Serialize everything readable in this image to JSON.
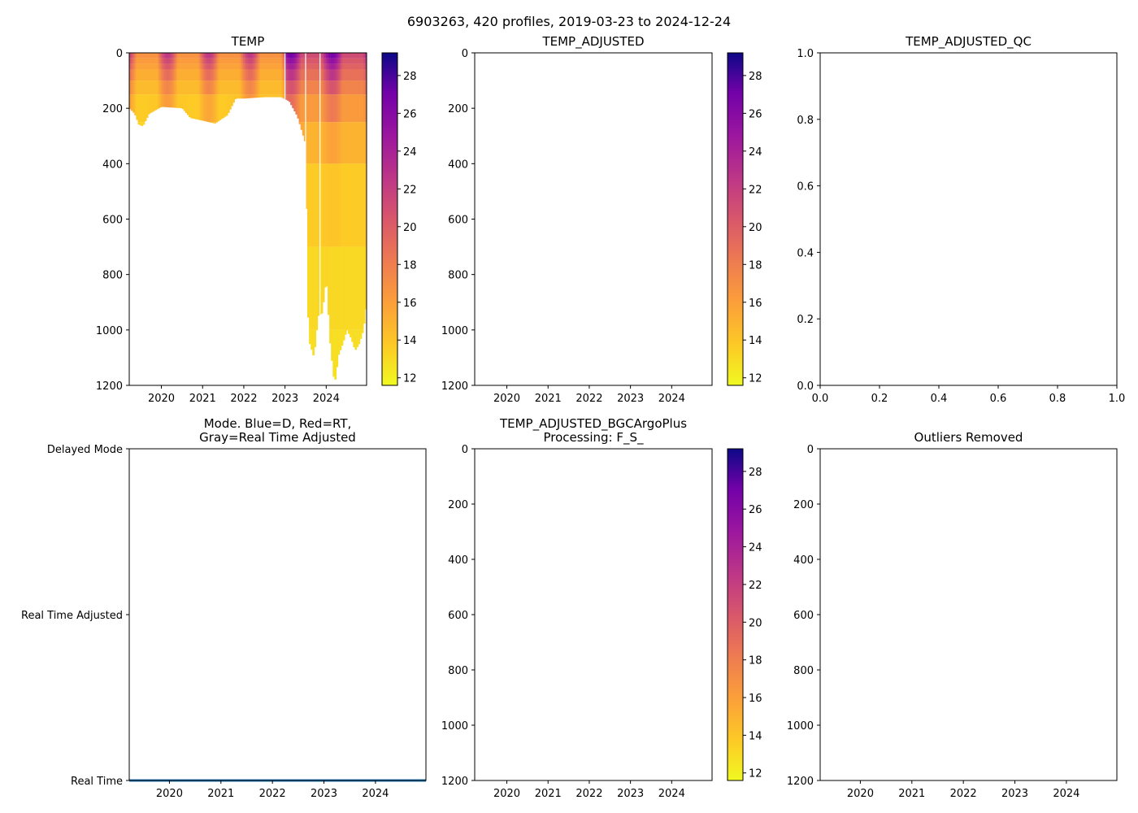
{
  "figure": {
    "suptitle": "6903263, 420 profiles, 2019-03-23 to 2024-12-24"
  },
  "colors": {
    "mode_line": "#1f77b4",
    "background": "#ffffff"
  },
  "chart_data": [
    {
      "id": "temp",
      "type": "heatmap",
      "title": "TEMP",
      "xlabel": "",
      "ylabel": "",
      "xticks": [
        "2020",
        "2021",
        "2022",
        "2023",
        "2024"
      ],
      "xtick_years": [
        2020,
        2021,
        2022,
        2023,
        2024
      ],
      "xlim": [
        2019.22,
        2024.98
      ],
      "yticks": [
        "0",
        "200",
        "400",
        "600",
        "800",
        "1000",
        "1200"
      ],
      "ytick_values": [
        0,
        200,
        400,
        600,
        800,
        1000,
        1200
      ],
      "ylim": [
        1200,
        0
      ],
      "colormap": "plasma_r",
      "colorbar": {
        "range": [
          11.6,
          29.2
        ],
        "ticks": [
          "12",
          "14",
          "16",
          "18",
          "20",
          "22",
          "24",
          "26",
          "28"
        ],
        "tick_values": [
          12,
          14,
          16,
          18,
          20,
          22,
          24,
          26,
          28
        ]
      },
      "profile_max_depth": {
        "time": [
          2019.22,
          2019.35,
          2019.45,
          2019.55,
          2019.7,
          2020.0,
          2020.5,
          2020.7,
          2021.0,
          2021.3,
          2021.6,
          2021.8,
          2022.0,
          2022.5,
          2022.9,
          2023.1,
          2023.3,
          2023.5,
          2023.55,
          2023.6,
          2023.7,
          2023.8,
          2023.9,
          2024.0,
          2024.1,
          2024.2,
          2024.3,
          2024.4,
          2024.5,
          2024.6,
          2024.7,
          2024.8,
          2024.9,
          2024.98
        ],
        "depth": [
          200,
          220,
          260,
          265,
          220,
          195,
          200,
          235,
          245,
          255,
          225,
          165,
          165,
          160,
          160,
          175,
          230,
          330,
          930,
          1050,
          1100,
          950,
          940,
          810,
          1060,
          1200,
          1090,
          1050,
          1000,
          1030,
          1075,
          1050,
          1000,
          900
        ]
      },
      "temperature_summary": {
        "surface_range": [
          20,
          29
        ],
        "deep_value": 12,
        "warm_surface_years": [
          "2019",
          "2020",
          "2021",
          "2022",
          "2023",
          "2024"
        ]
      }
    },
    {
      "id": "temp_adjusted",
      "type": "heatmap",
      "title": "TEMP_ADJUSTED",
      "xticks": [
        "2020",
        "2021",
        "2022",
        "2023",
        "2024"
      ],
      "xtick_years": [
        2020,
        2021,
        2022,
        2023,
        2024
      ],
      "xlim": [
        2019.22,
        2024.98
      ],
      "yticks": [
        "0",
        "200",
        "400",
        "600",
        "800",
        "1000",
        "1200"
      ],
      "ytick_values": [
        0,
        200,
        400,
        600,
        800,
        1000,
        1200
      ],
      "ylim": [
        1200,
        0
      ],
      "colormap": "plasma_r",
      "colorbar": {
        "range": [
          11.6,
          29.2
        ],
        "ticks": [
          "12",
          "14",
          "16",
          "18",
          "20",
          "22",
          "24",
          "26",
          "28"
        ],
        "tick_values": [
          12,
          14,
          16,
          18,
          20,
          22,
          24,
          26,
          28
        ]
      },
      "values": []
    },
    {
      "id": "temp_adjusted_qc",
      "type": "scatter",
      "title": "TEMP_ADJUSTED_QC",
      "xticks": [
        "0.0",
        "0.2",
        "0.4",
        "0.6",
        "0.8",
        "1.0"
      ],
      "xtick_values": [
        0,
        0.2,
        0.4,
        0.6,
        0.8,
        1.0
      ],
      "xlim": [
        0,
        1
      ],
      "yticks": [
        "0.0",
        "0.2",
        "0.4",
        "0.6",
        "0.8",
        "1.0"
      ],
      "ytick_values": [
        0,
        0.2,
        0.4,
        0.6,
        0.8,
        1.0
      ],
      "ylim": [
        0,
        1
      ],
      "values": []
    },
    {
      "id": "mode",
      "type": "line",
      "title": "Mode. Blue=D, Red=RT,",
      "title_line2": "Gray=Real Time Adjusted",
      "xticks": [
        "2020",
        "2021",
        "2022",
        "2023",
        "2024"
      ],
      "xtick_years": [
        2020,
        2021,
        2022,
        2023,
        2024
      ],
      "xlim": [
        2019.22,
        2024.98
      ],
      "yticks": [
        "Delayed Mode",
        "Real Time Adjusted",
        "Real Time"
      ],
      "ytick_values": [
        2,
        1,
        0
      ],
      "ylim": [
        0,
        2
      ],
      "series": [
        {
          "name": "mode",
          "x": [
            2019.22,
            2024.98
          ],
          "y": [
            0,
            0
          ]
        }
      ]
    },
    {
      "id": "bgc_plus",
      "type": "heatmap",
      "title": "TEMP_ADJUSTED_BGCArgoPlus",
      "title_line2": "Processing: F_S_",
      "xticks": [
        "2020",
        "2021",
        "2022",
        "2023",
        "2024"
      ],
      "xtick_years": [
        2020,
        2021,
        2022,
        2023,
        2024
      ],
      "xlim": [
        2019.22,
        2024.98
      ],
      "yticks": [
        "0",
        "200",
        "400",
        "600",
        "800",
        "1000",
        "1200"
      ],
      "ytick_values": [
        0,
        200,
        400,
        600,
        800,
        1000,
        1200
      ],
      "ylim": [
        1200,
        0
      ],
      "colormap": "plasma_r",
      "colorbar": {
        "range": [
          11.6,
          29.2
        ],
        "ticks": [
          "12",
          "14",
          "16",
          "18",
          "20",
          "22",
          "24",
          "26",
          "28"
        ],
        "tick_values": [
          12,
          14,
          16,
          18,
          20,
          22,
          24,
          26,
          28
        ]
      },
      "values": []
    },
    {
      "id": "outliers",
      "type": "scatter",
      "title": "Outliers Removed",
      "xticks": [
        "2020",
        "2021",
        "2022",
        "2023",
        "2024"
      ],
      "xtick_years": [
        2020,
        2021,
        2022,
        2023,
        2024
      ],
      "xlim": [
        2019.22,
        2024.98
      ],
      "yticks": [
        "0",
        "200",
        "400",
        "600",
        "800",
        "1000",
        "1200"
      ],
      "ytick_values": [
        0,
        200,
        400,
        600,
        800,
        1000,
        1200
      ],
      "ylim": [
        1200,
        0
      ],
      "values": []
    }
  ]
}
